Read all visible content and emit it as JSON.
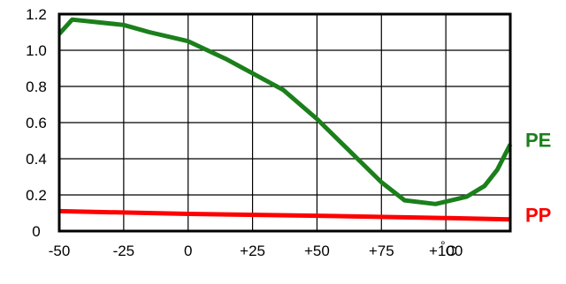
{
  "chart_data": {
    "type": "line",
    "title": "",
    "xlabel": "",
    "ylabel": "",
    "xlim": [
      -50,
      125
    ],
    "ylim": [
      0,
      1.2
    ],
    "grid": true,
    "legend": "none",
    "x_ticks": [
      -50,
      -25,
      0,
      25,
      50,
      75,
      100
    ],
    "x_tick_labels": [
      "-50",
      "-25",
      "0",
      "+25",
      "+50",
      "+75",
      "+100"
    ],
    "x_unit_label": "°C",
    "y_ticks": [
      0,
      0.2,
      0.4,
      0.6,
      0.8,
      1.0,
      1.2
    ],
    "y_tick_labels": [
      "0",
      "0.2",
      "0.4",
      "0.6",
      "0.8",
      "1.0",
      "1.2"
    ],
    "series": [
      {
        "name": "PE",
        "color": "#1b7f1b",
        "points": [
          [
            -50,
            1.09
          ],
          [
            -45,
            1.17
          ],
          [
            -25,
            1.14
          ],
          [
            -15,
            1.1
          ],
          [
            0,
            1.05
          ],
          [
            15,
            0.95
          ],
          [
            37,
            0.78
          ],
          [
            50,
            0.62
          ],
          [
            75,
            0.27
          ],
          [
            84,
            0.17
          ],
          [
            96,
            0.15
          ],
          [
            108,
            0.19
          ],
          [
            115,
            0.25
          ],
          [
            120,
            0.34
          ],
          [
            125,
            0.48
          ]
        ]
      },
      {
        "name": "PP",
        "color": "#ff0000",
        "points": [
          [
            -50,
            0.11
          ],
          [
            0,
            0.095
          ],
          [
            50,
            0.085
          ],
          [
            100,
            0.072
          ],
          [
            125,
            0.065
          ]
        ]
      }
    ]
  }
}
